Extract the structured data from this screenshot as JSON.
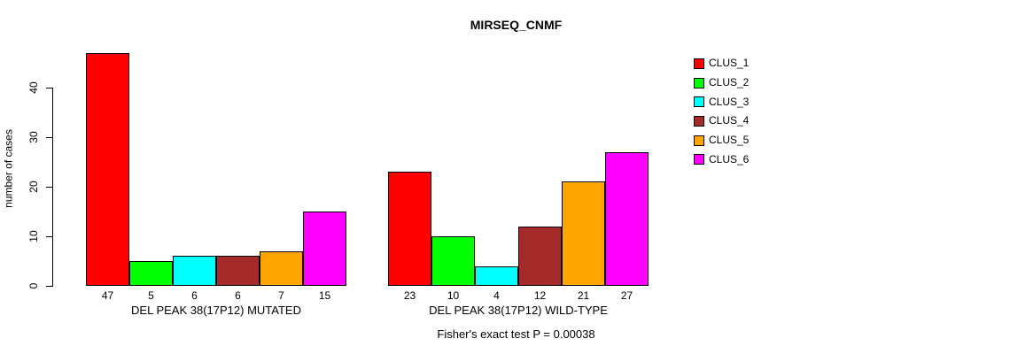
{
  "chart_data": {
    "type": "bar",
    "title": "MIRSEQ_CNMF",
    "ylabel": "number of cases",
    "xlabel": "",
    "ylim": [
      0,
      47
    ],
    "yticks": [
      0,
      10,
      20,
      30,
      40
    ],
    "grid": false,
    "categories": [
      "DEL PEAK 38(17P12) MUTATED",
      "DEL PEAK 38(17P12) WILD-TYPE"
    ],
    "series": [
      {
        "name": "CLUS_1",
        "color": "#FF0000",
        "values": [
          47,
          23
        ]
      },
      {
        "name": "CLUS_2",
        "color": "#00FF00",
        "values": [
          5,
          10
        ]
      },
      {
        "name": "CLUS_3",
        "color": "#00FFFF",
        "values": [
          6,
          4
        ]
      },
      {
        "name": "CLUS_4",
        "color": "#A52A2A",
        "values": [
          6,
          12
        ]
      },
      {
        "name": "CLUS_5",
        "color": "#FFA500",
        "values": [
          7,
          21
        ]
      },
      {
        "name": "CLUS_6",
        "color": "#FF00FF",
        "values": [
          15,
          27
        ]
      }
    ],
    "bar_value_labels_shown": true,
    "legend": {
      "position": "top-right"
    },
    "annotation": "Fisher's exact test P = 0.00038"
  },
  "colors": {
    "background": "#ffffff",
    "axis": "#000000",
    "text": "#000000"
  }
}
